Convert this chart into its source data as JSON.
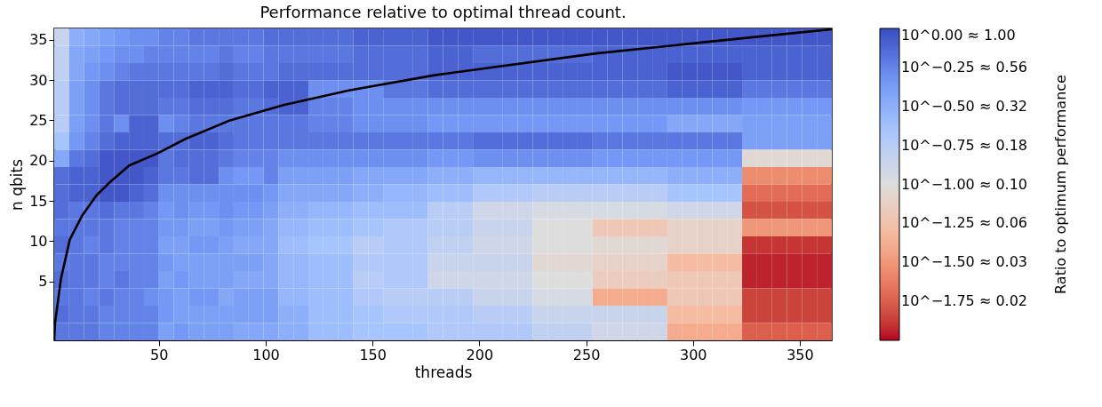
{
  "chart_data": {
    "type": "heatmap",
    "title": "Performance relative to optimal thread count.",
    "xlabel": "threads",
    "ylabel": "n qbits",
    "clabel": "Ratio to optimum performance",
    "x": [
      4.5,
      11.5,
      18.5,
      25.5,
      32.5,
      39.5,
      46.5,
      53.5,
      60.5,
      67.5,
      74.5,
      81.5,
      88.5,
      95.5,
      102.5,
      109.5,
      116.5,
      123.5,
      130.5,
      137.5,
      144.5,
      151.5,
      158.5,
      165.5,
      172.5,
      179.5,
      186.5,
      193.5,
      200.5,
      207.5,
      214.5,
      221.5,
      228.5,
      235.5,
      242.5,
      249.5,
      256.5,
      263.5,
      270.5,
      277.5,
      284.5,
      291.5,
      298.5,
      305.5,
      312.5,
      319.5,
      326.5,
      333.5,
      340.5,
      347.5,
      354.5,
      361.5
    ],
    "y": [
      35.325,
      33.175,
      31.025,
      28.875,
      26.725,
      24.575,
      22.425,
      20.275,
      18.125,
      15.975,
      13.825,
      11.675,
      9.525,
      7.375,
      5.225,
      3.075,
      0.925,
      -1.225
    ],
    "cells": [
      [
        -0.85,
        -0.5,
        -0.45,
        -0.4,
        -0.35,
        -0.3,
        -0.3,
        -0.25,
        -0.25,
        -0.2,
        -0.2,
        -0.2,
        -0.2,
        -0.2,
        -0.15,
        -0.15,
        -0.15,
        -0.15,
        -0.15,
        -0.15,
        -0.1,
        -0.1,
        -0.1,
        -0.1,
        -0.1,
        -0.05,
        -0.05,
        -0.05,
        -0.05,
        -0.05,
        -0.05,
        -0.05,
        -0.05,
        -0.05,
        -0.05,
        -0.05,
        -0.05,
        -0.05,
        -0.05,
        -0.05,
        -0.05,
        -0.05,
        -0.05,
        -0.05,
        -0.05,
        -0.05,
        -0.05,
        -0.05,
        -0.05,
        -0.05,
        -0.05,
        -0.05
      ],
      [
        -0.8,
        -0.45,
        -0.4,
        -0.35,
        -0.3,
        -0.3,
        -0.25,
        -0.25,
        -0.25,
        -0.25,
        -0.25,
        -0.2,
        -0.25,
        -0.25,
        -0.2,
        -0.2,
        -0.2,
        -0.2,
        -0.2,
        -0.2,
        -0.15,
        -0.15,
        -0.15,
        -0.15,
        -0.15,
        -0.1,
        -0.1,
        -0.1,
        -0.15,
        -0.15,
        -0.15,
        -0.15,
        -0.15,
        -0.15,
        -0.15,
        -0.15,
        -0.1,
        -0.1,
        -0.1,
        -0.1,
        -0.1,
        -0.1,
        -0.1,
        -0.1,
        -0.1,
        -0.1,
        -0.1,
        -0.1,
        -0.1,
        -0.1,
        -0.1,
        -0.1
      ],
      [
        -0.8,
        -0.45,
        -0.35,
        -0.3,
        -0.25,
        -0.2,
        -0.2,
        -0.2,
        -0.2,
        -0.2,
        -0.2,
        -0.15,
        -0.2,
        -0.2,
        -0.2,
        -0.15,
        -0.15,
        -0.15,
        -0.15,
        -0.15,
        -0.15,
        -0.15,
        -0.15,
        -0.15,
        -0.15,
        -0.1,
        -0.1,
        -0.1,
        -0.1,
        -0.1,
        -0.1,
        -0.1,
        -0.1,
        -0.1,
        -0.1,
        -0.1,
        -0.1,
        -0.1,
        -0.1,
        -0.1,
        -0.1,
        -0.05,
        -0.05,
        -0.05,
        -0.05,
        -0.05,
        -0.1,
        -0.1,
        -0.1,
        -0.1,
        -0.1,
        -0.1
      ],
      [
        -0.75,
        -0.4,
        -0.3,
        -0.2,
        -0.15,
        -0.15,
        -0.15,
        -0.15,
        -0.15,
        -0.1,
        -0.1,
        -0.1,
        -0.15,
        -0.15,
        -0.1,
        -0.1,
        -0.1,
        -0.3,
        -0.3,
        -0.3,
        -0.3,
        -0.3,
        -0.2,
        -0.2,
        -0.2,
        -0.15,
        -0.15,
        -0.15,
        -0.15,
        -0.15,
        -0.15,
        -0.15,
        -0.15,
        -0.15,
        -0.15,
        -0.15,
        -0.15,
        -0.15,
        -0.15,
        -0.15,
        -0.15,
        -0.1,
        -0.1,
        -0.1,
        -0.1,
        -0.1,
        -0.2,
        -0.2,
        -0.2,
        -0.2,
        -0.2,
        -0.2
      ],
      [
        -0.75,
        -0.4,
        -0.3,
        -0.2,
        -0.15,
        -0.15,
        -0.15,
        -0.2,
        -0.2,
        -0.15,
        -0.15,
        -0.15,
        -0.2,
        -0.2,
        -0.15,
        -0.1,
        -0.1,
        -0.25,
        -0.25,
        -0.25,
        -0.3,
        -0.3,
        -0.3,
        -0.3,
        -0.3,
        -0.3,
        -0.3,
        -0.3,
        -0.3,
        -0.3,
        -0.3,
        -0.3,
        -0.3,
        -0.3,
        -0.3,
        -0.3,
        -0.3,
        -0.3,
        -0.3,
        -0.3,
        -0.3,
        -0.3,
        -0.3,
        -0.3,
        -0.3,
        -0.3,
        -0.35,
        -0.35,
        -0.35,
        -0.35,
        -0.35,
        -0.35
      ],
      [
        -0.75,
        -0.4,
        -0.3,
        -0.2,
        -0.3,
        -0.1,
        -0.1,
        -0.3,
        -0.25,
        -0.2,
        -0.2,
        -0.2,
        -0.2,
        -0.2,
        -0.2,
        -0.2,
        -0.2,
        -0.25,
        -0.25,
        -0.25,
        -0.3,
        -0.3,
        -0.3,
        -0.3,
        -0.3,
        -0.35,
        -0.35,
        -0.35,
        -0.35,
        -0.35,
        -0.35,
        -0.35,
        -0.35,
        -0.35,
        -0.35,
        -0.35,
        -0.35,
        -0.35,
        -0.35,
        -0.35,
        -0.35,
        -0.45,
        -0.45,
        -0.45,
        -0.45,
        -0.45,
        -0.4,
        -0.4,
        -0.4,
        -0.4,
        -0.4,
        -0.4
      ],
      [
        -0.65,
        -0.35,
        -0.25,
        -0.15,
        -0.1,
        -0.1,
        -0.1,
        -0.15,
        -0.15,
        -0.1,
        -0.1,
        -0.15,
        -0.2,
        -0.2,
        -0.2,
        -0.2,
        -0.2,
        -0.2,
        -0.2,
        -0.2,
        -0.2,
        -0.2,
        -0.2,
        -0.2,
        -0.2,
        -0.2,
        -0.2,
        -0.2,
        -0.15,
        -0.15,
        -0.15,
        -0.15,
        -0.15,
        -0.15,
        -0.15,
        -0.15,
        -0.2,
        -0.2,
        -0.2,
        -0.2,
        -0.2,
        -0.2,
        -0.2,
        -0.2,
        -0.2,
        -0.2,
        -0.4,
        -0.4,
        -0.4,
        -0.4,
        -0.4,
        -0.4
      ],
      [
        -0.45,
        -0.2,
        -0.15,
        -0.05,
        -0.05,
        -0.05,
        -0.05,
        -0.2,
        -0.15,
        -0.15,
        -0.15,
        -0.2,
        -0.25,
        -0.25,
        -0.25,
        -0.3,
        -0.3,
        -0.3,
        -0.3,
        -0.3,
        -0.3,
        -0.3,
        -0.3,
        -0.3,
        -0.3,
        -0.35,
        -0.35,
        -0.35,
        -0.3,
        -0.3,
        -0.3,
        -0.3,
        -0.3,
        -0.3,
        -0.3,
        -0.3,
        -0.35,
        -0.35,
        -0.35,
        -0.35,
        -0.35,
        -0.35,
        -0.35,
        -0.35,
        -0.35,
        -0.35,
        -1.05,
        -1.05,
        -1.05,
        -1.05,
        -1.05,
        -1.05
      ],
      [
        -0.15,
        -0.1,
        -0.1,
        -0.05,
        -0.05,
        -0.05,
        -0.1,
        -0.2,
        -0.2,
        -0.15,
        -0.15,
        -0.3,
        -0.35,
        -0.35,
        -0.25,
        -0.4,
        -0.4,
        -0.4,
        -0.4,
        -0.4,
        -0.45,
        -0.45,
        -0.45,
        -0.45,
        -0.45,
        -0.5,
        -0.5,
        -0.5,
        -0.55,
        -0.55,
        -0.55,
        -0.55,
        -0.55,
        -0.55,
        -0.55,
        -0.55,
        -0.55,
        -0.55,
        -0.55,
        -0.55,
        -0.55,
        -0.5,
        -0.5,
        -0.5,
        -0.5,
        -0.5,
        -1.55,
        -1.55,
        -1.55,
        -1.55,
        -1.55,
        -1.55
      ],
      [
        -0.15,
        -0.1,
        -0.1,
        -0.05,
        -0.05,
        -0.1,
        -0.15,
        -0.3,
        -0.3,
        -0.3,
        -0.3,
        -0.3,
        -0.3,
        -0.3,
        -0.35,
        -0.45,
        -0.45,
        -0.45,
        -0.45,
        -0.45,
        -0.5,
        -0.5,
        -0.55,
        -0.55,
        -0.55,
        -0.6,
        -0.6,
        -0.6,
        -0.7,
        -0.7,
        -0.7,
        -0.7,
        -0.75,
        -0.75,
        -0.75,
        -0.75,
        -0.75,
        -0.75,
        -0.75,
        -0.75,
        -0.75,
        -0.65,
        -0.65,
        -0.65,
        -0.65,
        -0.65,
        -1.7,
        -1.7,
        -1.7,
        -1.7,
        -1.7,
        -1.7
      ],
      [
        -0.15,
        -0.2,
        -0.2,
        -0.15,
        -0.2,
        -0.2,
        -0.25,
        -0.35,
        -0.3,
        -0.35,
        -0.35,
        -0.3,
        -0.35,
        -0.35,
        -0.4,
        -0.5,
        -0.5,
        -0.55,
        -0.55,
        -0.55,
        -0.6,
        -0.6,
        -0.6,
        -0.6,
        -0.6,
        -0.75,
        -0.75,
        -0.75,
        -0.9,
        -0.9,
        -0.9,
        -0.9,
        -0.95,
        -0.95,
        -0.95,
        -0.95,
        -0.95,
        -0.95,
        -0.95,
        -0.95,
        -0.95,
        -0.9,
        -0.9,
        -0.9,
        -0.9,
        -0.9,
        -1.8,
        -1.8,
        -1.8,
        -1.8,
        -1.8,
        -1.8
      ],
      [
        -0.2,
        -0.2,
        -0.2,
        -0.2,
        -0.25,
        -0.25,
        -0.25,
        -0.35,
        -0.35,
        -0.4,
        -0.4,
        -0.35,
        -0.4,
        -0.4,
        -0.45,
        -0.55,
        -0.55,
        -0.6,
        -0.6,
        -0.6,
        -0.65,
        -0.65,
        -0.7,
        -0.7,
        -0.7,
        -0.75,
        -0.75,
        -0.75,
        -0.85,
        -0.85,
        -0.85,
        -0.85,
        -1.0,
        -1.0,
        -1.0,
        -1.0,
        -1.2,
        -1.2,
        -1.2,
        -1.2,
        -1.2,
        -1.1,
        -1.1,
        -1.1,
        -1.1,
        -1.1,
        -1.5,
        -1.5,
        -1.5,
        -1.5,
        -1.5,
        -1.5
      ],
      [
        -0.15,
        -0.2,
        -0.25,
        -0.2,
        -0.25,
        -0.25,
        -0.25,
        -0.4,
        -0.4,
        -0.35,
        -0.35,
        -0.4,
        -0.45,
        -0.45,
        -0.45,
        -0.6,
        -0.6,
        -0.65,
        -0.65,
        -0.65,
        -0.75,
        -0.75,
        -0.7,
        -0.7,
        -0.7,
        -0.8,
        -0.8,
        -0.8,
        -0.9,
        -0.9,
        -0.9,
        -0.9,
        -1.0,
        -1.0,
        -1.0,
        -1.0,
        -1.05,
        -1.05,
        -1.05,
        -1.05,
        -1.05,
        -1.1,
        -1.1,
        -1.1,
        -1.1,
        -1.1,
        -1.9,
        -1.9,
        -1.9,
        -1.9,
        -1.9,
        -1.9
      ],
      [
        -0.2,
        -0.2,
        -0.2,
        -0.25,
        -0.25,
        -0.25,
        -0.25,
        -0.35,
        -0.4,
        -0.4,
        -0.4,
        -0.4,
        -0.4,
        -0.4,
        -0.45,
        -0.55,
        -0.55,
        -0.6,
        -0.6,
        -0.6,
        -0.7,
        -0.7,
        -0.7,
        -0.7,
        -0.7,
        -0.85,
        -0.85,
        -0.85,
        -0.85,
        -0.85,
        -0.85,
        -0.85,
        -1.05,
        -1.05,
        -1.05,
        -1.05,
        -1.1,
        -1.1,
        -1.1,
        -1.1,
        -1.1,
        -1.3,
        -1.3,
        -1.3,
        -1.3,
        -1.3,
        -1.95,
        -1.95,
        -1.95,
        -1.95,
        -1.95,
        -1.95
      ],
      [
        -0.15,
        -0.2,
        -0.2,
        -0.25,
        -0.2,
        -0.25,
        -0.25,
        -0.4,
        -0.35,
        -0.4,
        -0.4,
        -0.4,
        -0.45,
        -0.45,
        -0.45,
        -0.55,
        -0.55,
        -0.6,
        -0.6,
        -0.6,
        -0.75,
        -0.75,
        -0.7,
        -0.7,
        -0.7,
        -0.9,
        -0.9,
        -0.9,
        -0.9,
        -0.9,
        -0.9,
        -0.9,
        -1.0,
        -1.0,
        -1.0,
        -1.0,
        -1.15,
        -1.15,
        -1.15,
        -1.15,
        -1.15,
        -1.2,
        -1.2,
        -1.2,
        -1.2,
        -1.2,
        -1.95,
        -1.95,
        -1.95,
        -1.95,
        -1.95,
        -1.95
      ],
      [
        -0.2,
        -0.2,
        -0.25,
        -0.2,
        -0.25,
        -0.25,
        -0.3,
        -0.35,
        -0.4,
        -0.35,
        -0.35,
        -0.45,
        -0.4,
        -0.4,
        -0.4,
        -0.55,
        -0.55,
        -0.6,
        -0.6,
        -0.6,
        -0.7,
        -0.7,
        -0.75,
        -0.75,
        -0.75,
        -0.75,
        -0.75,
        -0.75,
        -0.85,
        -0.85,
        -0.85,
        -0.85,
        -0.95,
        -0.95,
        -0.95,
        -0.95,
        -1.4,
        -1.4,
        -1.4,
        -1.4,
        -1.4,
        -1.2,
        -1.2,
        -1.2,
        -1.2,
        -1.2,
        -1.85,
        -1.85,
        -1.85,
        -1.85,
        -1.85,
        -1.85
      ],
      [
        -0.15,
        -0.2,
        -0.2,
        -0.25,
        -0.25,
        -0.25,
        -0.25,
        -0.35,
        -0.4,
        -0.4,
        -0.4,
        -0.4,
        -0.4,
        -0.4,
        -0.4,
        -0.5,
        -0.5,
        -0.6,
        -0.6,
        -0.6,
        -0.65,
        -0.65,
        -0.7,
        -0.7,
        -0.7,
        -0.7,
        -0.7,
        -0.7,
        -0.75,
        -0.75,
        -0.75,
        -0.75,
        -0.85,
        -0.85,
        -0.85,
        -0.85,
        -0.85,
        -0.85,
        -0.85,
        -0.85,
        -0.85,
        -1.3,
        -1.3,
        -1.3,
        -1.3,
        -1.3,
        -1.85,
        -1.85,
        -1.85,
        -1.85,
        -1.85,
        -1.85
      ],
      [
        -0.2,
        -0.2,
        -0.2,
        -0.25,
        -0.25,
        -0.25,
        -0.25,
        -0.4,
        -0.35,
        -0.4,
        -0.4,
        -0.4,
        -0.45,
        -0.45,
        -0.45,
        -0.5,
        -0.5,
        -0.6,
        -0.6,
        -0.6,
        -0.65,
        -0.65,
        -0.65,
        -0.65,
        -0.65,
        -0.7,
        -0.7,
        -0.7,
        -0.7,
        -0.7,
        -0.7,
        -0.7,
        -0.8,
        -0.8,
        -0.8,
        -0.8,
        -0.9,
        -0.9,
        -0.9,
        -0.9,
        -0.9,
        -1.4,
        -1.4,
        -1.4,
        -1.4,
        -1.4,
        -1.75,
        -1.75,
        -1.75,
        -1.75,
        -1.75,
        -1.75
      ]
    ],
    "clim": [
      -2,
      0
    ],
    "cticks": [
      {
        "value": 0,
        "label": "10^0.00 ≈ 1.00"
      },
      {
        "value": -0.25,
        "label": "10^−0.25 ≈ 0.56"
      },
      {
        "value": -0.5,
        "label": "10^−0.50 ≈ 0.32"
      },
      {
        "value": -0.75,
        "label": "10^−0.75 ≈ 0.18"
      },
      {
        "value": -1.0,
        "label": "10^−1.00 ≈ 0.10"
      },
      {
        "value": -1.25,
        "label": "10^−1.25 ≈ 0.06"
      },
      {
        "value": -1.5,
        "label": "10^−1.50 ≈ 0.03"
      },
      {
        "value": -1.75,
        "label": "10^−1.75 ≈ 0.02"
      }
    ],
    "xlim": [
      1,
      365
    ],
    "xticks": [
      50,
      100,
      150,
      200,
      250,
      300,
      350
    ],
    "ylim": [
      -2.3,
      36.4
    ],
    "yticks": [
      5,
      10,
      15,
      20,
      25,
      30,
      35
    ],
    "series": [
      {
        "type": "line",
        "color": "#000000",
        "x": [
          1.0,
          1.4,
          4.2,
          8.3,
          13.9,
          20.8,
          27.8,
          36.1,
          49.3,
          62.5,
          83.3,
          108.3,
          138.9,
          179,
          254.6,
          324,
          365
        ],
        "values": [
          -2.3,
          -0.1,
          5.4,
          10.2,
          13.1,
          15.7,
          17.5,
          19.4,
          20.9,
          22.7,
          25.0,
          26.9,
          28.7,
          30.6,
          33.3,
          35.2,
          36.3
        ]
      }
    ]
  }
}
